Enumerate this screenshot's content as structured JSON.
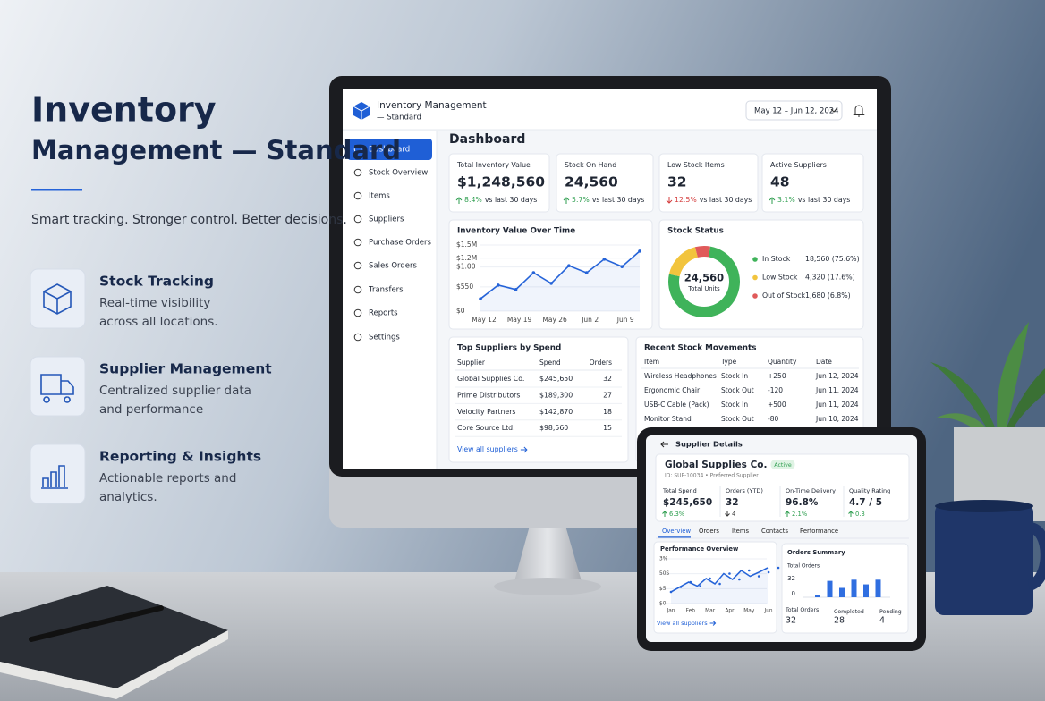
{
  "hero": {
    "title_lines": [
      "Inventory",
      "Management — Standard"
    ],
    "tagline": "Smart tracking. Stronger control. Better decisions.",
    "features": [
      {
        "title": "Stock Tracking",
        "desc_lines": [
          "Real-time visibility",
          "across all locations."
        ]
      },
      {
        "title": "Supplier Management",
        "desc_lines": [
          "Centralized supplier data",
          "and performance"
        ]
      },
      {
        "title": "Reporting & Insights",
        "desc_lines": [
          "Actionable reports and",
          "analytics."
        ]
      }
    ]
  },
  "dashboard": {
    "brand_lines": [
      "Inventory Management",
      "— Standard"
    ],
    "date_range": "May 12 – Jun 12, 2024",
    "nav": [
      "Dashboard",
      "Stock Overview",
      "Items",
      "Suppliers",
      "Purchase Orders",
      "Sales Orders",
      "Transfers",
      "Reports",
      "Settings"
    ],
    "page_title": "Dashboard",
    "kpis": [
      {
        "label": "Total Inventory Value",
        "value": "$1,248,560",
        "change": "8.4%",
        "compare": "vs last 30 days",
        "trend": "up"
      },
      {
        "label": "Stock On Hand",
        "value": "24,560",
        "change": "5.7%",
        "compare": "vs last 30 days",
        "trend": "up"
      },
      {
        "label": "Low Stock Items",
        "value": "32",
        "change": "12.5%",
        "compare": "vs last 30 days",
        "trend": "down"
      },
      {
        "label": "Active Suppliers",
        "value": "48",
        "change": "3.1%",
        "compare": "vs last 30 days",
        "trend": "up"
      }
    ],
    "suppliers_table": {
      "title": "Top Suppliers by Spend",
      "headers": [
        "Supplier",
        "Spend",
        "Orders"
      ],
      "rows": [
        [
          "Global Supplies Co.",
          "$245,650",
          "32"
        ],
        [
          "Prime Distributors",
          "$189,300",
          "27"
        ],
        [
          "Velocity Partners",
          "$142,870",
          "18"
        ],
        [
          "Core Source Ltd.",
          "$98,560",
          "15"
        ]
      ],
      "link": "View all suppliers"
    },
    "movements_table": {
      "title": "Recent Stock Movements",
      "headers": [
        "Item",
        "Type",
        "Quantity",
        "Date"
      ],
      "rows": [
        [
          "Wireless Headphones",
          "Stock In",
          "+250",
          "Jun 12, 2024"
        ],
        [
          "Ergonomic Chair",
          "Stock Out",
          "-120",
          "Jun 11, 2024"
        ],
        [
          "USB-C Cable (Pack)",
          "Stock In",
          "+500",
          "Jun 11, 2024"
        ],
        [
          "Monitor Stand",
          "Stock Out",
          "-80",
          "Jun 10, 2024"
        ]
      ]
    }
  },
  "chart_data": [
    {
      "type": "line",
      "title": "Inventory Value Over Time",
      "categories": [
        "May 12",
        null,
        "May 19",
        null,
        "May 26",
        null,
        "Jun 2",
        null,
        "Jun 9",
        null
      ],
      "values": [
        0.28,
        0.59,
        0.49,
        0.87,
        0.63,
        1.03,
        0.87,
        1.18,
        1.01,
        1.36
      ],
      "color": "#2563d8",
      "ylim": [
        0,
        1.5
      ],
      "yticks": [
        0,
        {
          "value": 0.55,
          "label": "$550"
        },
        {
          "value": 1.0,
          "label": "$1.00"
        },
        {
          "value": 1.2,
          "label": "$1.2M"
        },
        {
          "value": 1.5,
          "label": "$1.5M"
        }
      ],
      "yticks_labels_0": "$0",
      "grid": true
    },
    {
      "type": "pie",
      "title": "Stock Status",
      "center_value": "24,560",
      "center_label": "Total Units",
      "categories": [
        "In Stock",
        "Low Stock",
        "Out of Stock"
      ],
      "values": [
        18560,
        4320,
        1680
      ],
      "value_labels": [
        "18,560 (75.6%)",
        "4,320 (17.6%)",
        "1,680 (6.8%)"
      ],
      "colors": [
        "#3fb35a",
        "#f2c43d",
        "#e05a5a"
      ]
    },
    {
      "type": "line",
      "title": "Performance Overview",
      "categories": [
        "Jan",
        null,
        "Feb",
        null,
        "Mar",
        null,
        "Apr",
        null,
        "May",
        null,
        "Jun",
        null
      ],
      "values": [
        26,
        37,
        48,
        39,
        56,
        44,
        67,
        54,
        74,
        61,
        70,
        80
      ],
      "color": "#2563d8",
      "ylim": [
        0,
        100
      ],
      "y_labels": [
        "3%",
        "50S",
        "$5",
        "$0"
      ],
      "grid": true
    },
    {
      "type": "bar",
      "title": "Orders Summary",
      "subtitle": "Total Orders",
      "values": [
        4,
        28,
        16,
        30,
        22,
        30
      ],
      "color": "#2f6ee0",
      "ylim": [
        0,
        32
      ],
      "yticks": [
        0,
        32
      ]
    }
  ],
  "tablet": {
    "back_title": "Supplier Details",
    "name": "Global Supplies Co.",
    "status": "Active",
    "meta": "ID: SUP-10034 • Preferred Supplier",
    "stats": [
      {
        "label": "Total Spend",
        "value": "$245,650",
        "change": "6.3%",
        "trend": "up"
      },
      {
        "label": "Orders (YTD)",
        "value": "32",
        "change": "4",
        "trend": "down"
      },
      {
        "label": "On-Time Delivery",
        "value": "96.8%",
        "change": "2.1%",
        "trend": "up"
      },
      {
        "label": "Quality Rating",
        "value": "4.7 / 5",
        "change": "0.3",
        "trend": "up"
      }
    ],
    "tabs": [
      "Overview",
      "Orders",
      "Items",
      "Contacts",
      "Performance"
    ],
    "link": "View all suppliers",
    "order_totals": [
      {
        "label": "Total Orders",
        "value": "32"
      },
      {
        "label": "Completed",
        "value": "28"
      },
      {
        "label": "Pending",
        "value": "4"
      }
    ]
  }
}
